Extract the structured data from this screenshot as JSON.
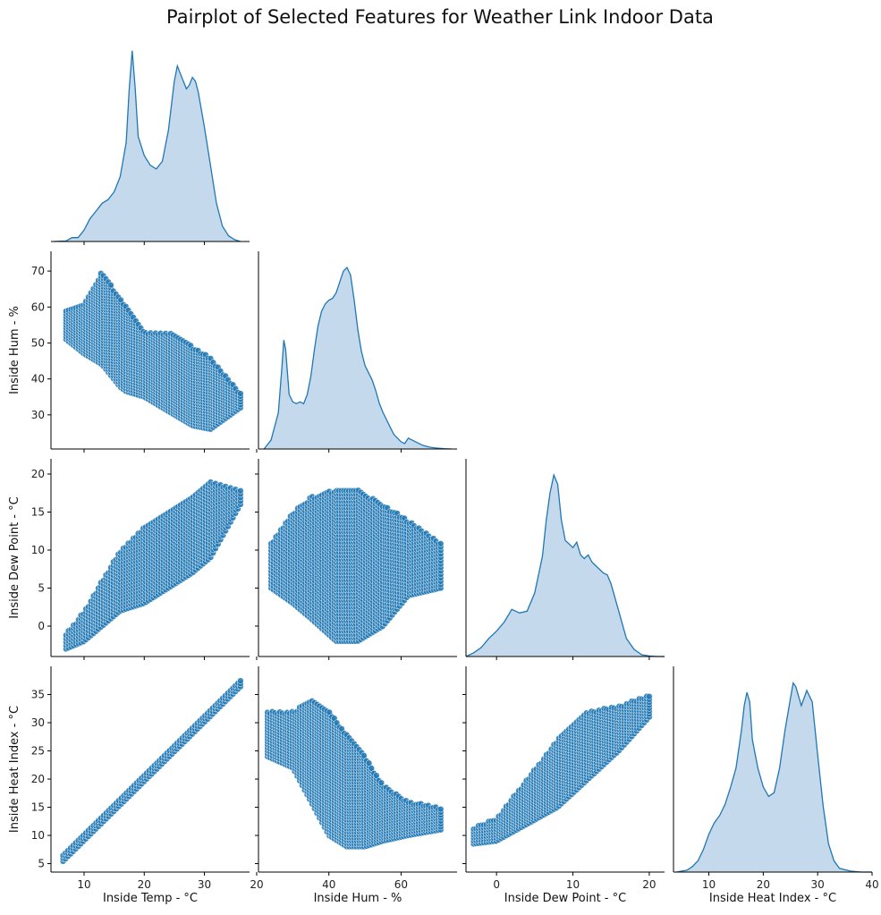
{
  "chart_data": {
    "type": "scatter",
    "title": "Pairplot of Selected Features for Weather Link Indoor Data",
    "variables": [
      "Inside Temp - °C",
      "Inside Hum - %",
      "Inside Dew Point - °C",
      "Inside Heat Index - °C"
    ],
    "colors": {
      "marker": "#1f77b4",
      "kde_fill": "#c5d9ec",
      "kde_line": "#1f77b4",
      "axis": "#000000"
    },
    "grid": false,
    "legend": "none",
    "axes": {
      "temp": {
        "lim": [
          4.5,
          37.5
        ],
        "ticks": [
          "10",
          "20",
          "30"
        ]
      },
      "hum": {
        "lim": [
          20.5,
          75.5
        ],
        "ticks": [
          "20",
          "40",
          "60"
        ],
        "yticks": [
          "30",
          "40",
          "50",
          "60",
          "70"
        ]
      },
      "dew": {
        "lim": [
          -4,
          22
        ],
        "ticks": [
          "0",
          "10",
          "20"
        ],
        "yticks": [
          "0",
          "5",
          "10",
          "15",
          "20"
        ]
      },
      "heat": {
        "lim": [
          3.5,
          40
        ],
        "ticks": [
          "10",
          "20",
          "30",
          "40"
        ],
        "yticks": [
          "5",
          "10",
          "15",
          "20",
          "25",
          "30",
          "35"
        ]
      }
    },
    "kde": {
      "temp": {
        "x": [
          5,
          7,
          8,
          9,
          10,
          11,
          12,
          13,
          14,
          15,
          16,
          17,
          17.5,
          18,
          18.5,
          19,
          20,
          21,
          22,
          23,
          24,
          25,
          25.5,
          26,
          27,
          27.5,
          28,
          28.5,
          29,
          30,
          31,
          32,
          33,
          34,
          35,
          36
        ],
        "y": [
          0,
          0.3,
          2,
          2,
          6,
          12,
          16,
          20,
          22,
          26,
          34,
          52,
          80,
          100,
          80,
          55,
          45,
          40,
          38,
          42,
          58,
          84,
          92,
          88,
          80,
          82,
          86,
          84,
          78,
          60,
          40,
          20,
          8,
          3,
          1,
          0
        ]
      },
      "hum": {
        "x": [
          22,
          24,
          26,
          27,
          27.5,
          28,
          29,
          30,
          31,
          32,
          33,
          34,
          35,
          36,
          37,
          38,
          39,
          40,
          41,
          42,
          43,
          44,
          45,
          46,
          47,
          48,
          49,
          50,
          51,
          52,
          53,
          54,
          55,
          56,
          57,
          58,
          59,
          60,
          61,
          62,
          64,
          66,
          68,
          70,
          72,
          74
        ],
        "y": [
          0,
          5,
          20,
          45,
          60,
          55,
          30,
          26,
          25,
          26,
          25,
          30,
          40,
          55,
          68,
          76,
          80,
          82,
          83,
          86,
          92,
          98,
          100,
          96,
          82,
          66,
          54,
          46,
          42,
          38,
          32,
          25,
          20,
          16,
          12,
          8,
          6,
          4,
          3,
          6,
          4,
          2,
          1,
          0.5,
          0.2,
          0
        ]
      },
      "dew": {
        "x": [
          -4,
          -3,
          -2,
          -1,
          0,
          1,
          2,
          3,
          4,
          5,
          6,
          6.5,
          7,
          7.5,
          8,
          8.5,
          9,
          9.5,
          10,
          10.5,
          11,
          11.5,
          12,
          12.5,
          13,
          13.5,
          14,
          14.5,
          15,
          16,
          17,
          18,
          19,
          20,
          21,
          22
        ],
        "y": [
          0,
          2,
          5,
          10,
          14,
          19,
          26,
          24,
          25,
          35,
          55,
          75,
          90,
          100,
          95,
          75,
          64,
          62,
          60,
          63,
          56,
          54,
          56,
          52,
          50,
          48,
          46,
          45,
          40,
          25,
          10,
          4,
          1,
          0.3,
          0,
          0
        ]
      },
      "heat": {
        "x": [
          4,
          6,
          7,
          8,
          9,
          10,
          11,
          12,
          13,
          14,
          15,
          16,
          16.5,
          17,
          17.5,
          18,
          19,
          20,
          21,
          22,
          23,
          24,
          25,
          25.5,
          26,
          27,
          27.5,
          28,
          29,
          30,
          31,
          32,
          33,
          34,
          36,
          38,
          40
        ],
        "y": [
          0,
          1,
          3,
          6,
          12,
          20,
          26,
          30,
          36,
          45,
          55,
          75,
          88,
          95,
          90,
          70,
          55,
          45,
          40,
          42,
          55,
          75,
          92,
          100,
          98,
          88,
          92,
          96,
          90,
          62,
          35,
          15,
          6,
          2,
          0.5,
          0,
          0
        ]
      }
    },
    "scatter": {
      "hum_vs_temp": {
        "x": "temp",
        "y": "hum",
        "x_range": [
          7,
          36
        ],
        "y_center": [
          [
            7,
            55
          ],
          [
            10,
            54
          ],
          [
            13,
            57
          ],
          [
            16,
            50
          ],
          [
            20,
            44
          ],
          [
            24,
            42
          ],
          [
            28,
            38
          ],
          [
            31,
            36
          ],
          [
            36,
            34
          ]
        ],
        "y_halfwidth": [
          [
            7,
            4
          ],
          [
            10,
            7
          ],
          [
            13,
            13
          ],
          [
            17,
            12
          ],
          [
            20,
            9
          ],
          [
            24,
            11
          ],
          [
            28,
            11
          ],
          [
            31,
            10
          ],
          [
            36,
            2
          ]
        ]
      },
      "dew_vs_temp": {
        "x": "temp",
        "y": "dew",
        "x_range": [
          7,
          36
        ],
        "y_center": [
          [
            7,
            -2
          ],
          [
            10,
            0
          ],
          [
            13,
            3
          ],
          [
            16,
            6
          ],
          [
            20,
            8
          ],
          [
            24,
            10
          ],
          [
            28,
            12
          ],
          [
            31,
            14
          ],
          [
            36,
            17
          ]
        ],
        "y_halfwidth": [
          [
            7,
            1
          ],
          [
            10,
            2
          ],
          [
            13,
            3
          ],
          [
            16,
            4
          ],
          [
            20,
            5
          ],
          [
            24,
            5
          ],
          [
            28,
            5
          ],
          [
            31,
            5
          ],
          [
            36,
            1
          ]
        ]
      },
      "dew_vs_hum": {
        "x": "hum",
        "y": "dew",
        "x_range": [
          24,
          71
        ],
        "y_center": [
          [
            24,
            8
          ],
          [
            30,
            9
          ],
          [
            35,
            9
          ],
          [
            42,
            8
          ],
          [
            48,
            8
          ],
          [
            55,
            8
          ],
          [
            62,
            9
          ],
          [
            71,
            8
          ]
        ],
        "y_halfwidth": [
          [
            24,
            3
          ],
          [
            30,
            6
          ],
          [
            35,
            8
          ],
          [
            42,
            10
          ],
          [
            48,
            10
          ],
          [
            55,
            8
          ],
          [
            62,
            5
          ],
          [
            71,
            3
          ]
        ]
      },
      "heat_vs_temp": {
        "x": "temp",
        "y": "heat",
        "x_range": [
          6.5,
          36
        ],
        "y_center": [
          [
            6.5,
            6
          ],
          [
            36,
            37
          ]
        ],
        "y_halfwidth": [
          [
            6.5,
            0.6
          ],
          [
            36,
            0.6
          ]
        ]
      },
      "heat_vs_hum": {
        "x": "hum",
        "y": "heat",
        "x_range": [
          23,
          71
        ],
        "y_center": [
          [
            23,
            28
          ],
          [
            30,
            27
          ],
          [
            35,
            25
          ],
          [
            40,
            21
          ],
          [
            45,
            18
          ],
          [
            50,
            16
          ],
          [
            55,
            14
          ],
          [
            62,
            13
          ],
          [
            71,
            13
          ]
        ],
        "y_halfwidth": [
          [
            23,
            4
          ],
          [
            30,
            5
          ],
          [
            35,
            9
          ],
          [
            40,
            11
          ],
          [
            45,
            10
          ],
          [
            50,
            8
          ],
          [
            55,
            5
          ],
          [
            62,
            3
          ],
          [
            71,
            2
          ]
        ]
      },
      "heat_vs_dew": {
        "x": "dew",
        "y": "heat",
        "x_range": [
          -3,
          20
        ],
        "y_center": [
          [
            -3,
            10
          ],
          [
            0,
            11
          ],
          [
            4,
            16
          ],
          [
            8,
            21
          ],
          [
            12,
            26
          ],
          [
            16,
            29
          ],
          [
            20,
            33
          ]
        ],
        "y_halfwidth": [
          [
            -3,
            1.5
          ],
          [
            0,
            2
          ],
          [
            4,
            4
          ],
          [
            8,
            6
          ],
          [
            12,
            6
          ],
          [
            16,
            4
          ],
          [
            20,
            2
          ]
        ]
      }
    }
  }
}
